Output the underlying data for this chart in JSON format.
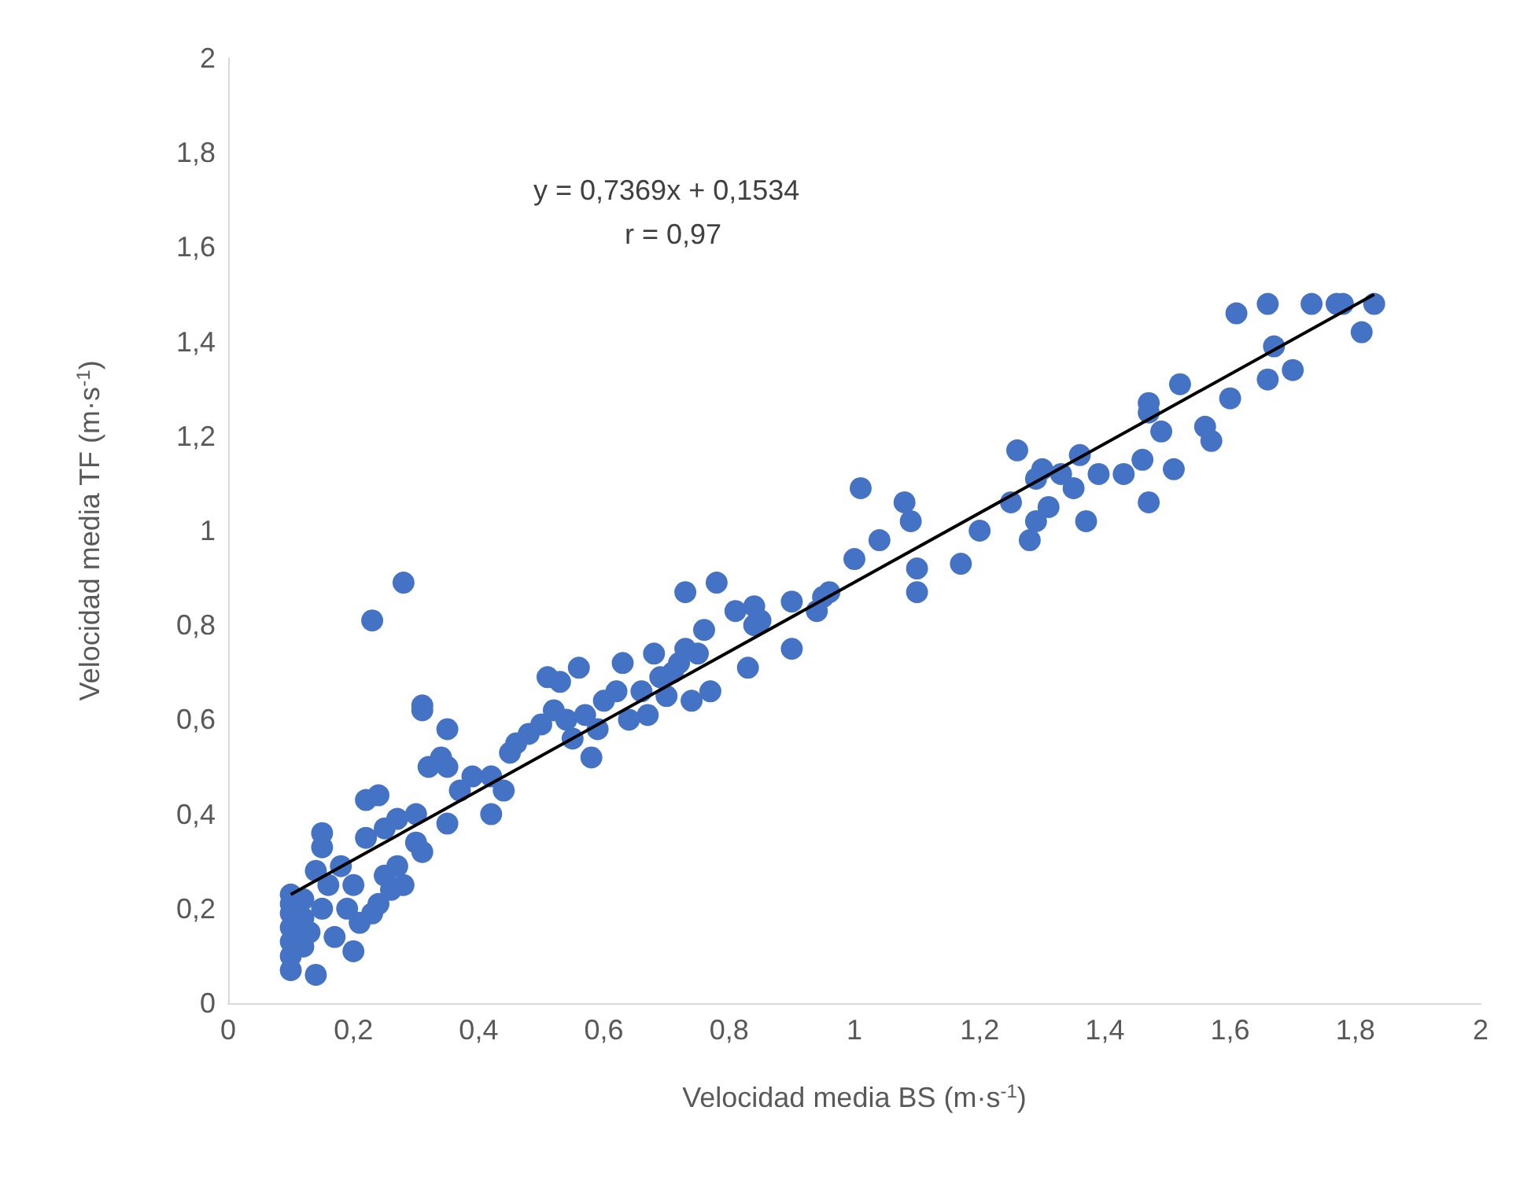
{
  "chart_data": {
    "type": "scatter",
    "xlabel": "Velocidad media BS (m·s$^{-1}$)",
    "ylabel": "Velocidad media TF (m·s$^{-1}$)",
    "annotations": [
      "y = 0,7369x + 0,1534",
      "r = 0,97"
    ],
    "xlim": [
      0,
      2
    ],
    "ylim": [
      0,
      2
    ],
    "xticks": [
      0,
      {
        "value": 0.2,
        "label": "0,2"
      },
      {
        "value": 0.4,
        "label": "0,4"
      },
      {
        "value": 0.6,
        "label": "0,6"
      },
      {
        "value": 0.8,
        "label": "0,8"
      },
      1,
      {
        "value": 1.2,
        "label": "1,2"
      },
      {
        "value": 1.4,
        "label": "1,4"
      },
      {
        "value": 1.6,
        "label": "1,6"
      },
      {
        "value": 1.8,
        "label": "1,8"
      },
      2
    ],
    "yticks": [
      0,
      {
        "value": 0.2,
        "label": "0,2"
      },
      {
        "value": 0.4,
        "label": "0,4"
      },
      {
        "value": 0.6,
        "label": "0,6"
      },
      {
        "value": 0.8,
        "label": "0,8"
      },
      1,
      {
        "value": 1.2,
        "label": "1,2"
      },
      {
        "value": 1.4,
        "label": "1,4"
      },
      {
        "value": 1.6,
        "label": "1,6"
      },
      {
        "value": 1.8,
        "label": "1,8"
      },
      2
    ],
    "grid": false,
    "series": [
      {
        "color": "#4472c4",
        "marker": "circle",
        "x": [
          0.1,
          0.1,
          0.1,
          0.1,
          0.1,
          0.1,
          0.1,
          0.12,
          0.12,
          0.12,
          0.13,
          0.14,
          0.14,
          0.15,
          0.15,
          0.15,
          0.16,
          0.17,
          0.18,
          0.19,
          0.2,
          0.2,
          0.21,
          0.22,
          0.22,
          0.23,
          0.23,
          0.24,
          0.24,
          0.25,
          0.25,
          0.26,
          0.27,
          0.27,
          0.28,
          0.28,
          0.3,
          0.3,
          0.31,
          0.31,
          0.31,
          0.32,
          0.34,
          0.35,
          0.35,
          0.35,
          0.37,
          0.39,
          0.42,
          0.42,
          0.44,
          0.45,
          0.46,
          0.48,
          0.5,
          0.51,
          0.52,
          0.53,
          0.54,
          0.55,
          0.56,
          0.57,
          0.58,
          0.59,
          0.6,
          0.62,
          0.63,
          0.64,
          0.66,
          0.67,
          0.68,
          0.69,
          0.7,
          0.71,
          0.72,
          0.73,
          0.73,
          0.74,
          0.75,
          0.76,
          0.77,
          0.78,
          0.81,
          0.83,
          0.84,
          0.84,
          0.85,
          0.9,
          0.9,
          0.94,
          0.95,
          0.96,
          1.0,
          1.01,
          1.04,
          1.08,
          1.09,
          1.1,
          1.1,
          1.17,
          1.2,
          1.25,
          1.26,
          1.28,
          1.29,
          1.29,
          1.3,
          1.31,
          1.33,
          1.35,
          1.36,
          1.37,
          1.39,
          1.43,
          1.46,
          1.47,
          1.47,
          1.47,
          1.49,
          1.51,
          1.52,
          1.56,
          1.57,
          1.6,
          1.61,
          1.66,
          1.66,
          1.67,
          1.7,
          1.73,
          1.77,
          1.78,
          1.81,
          1.83
        ],
        "values": [
          0.07,
          0.1,
          0.13,
          0.16,
          0.19,
          0.21,
          0.23,
          0.12,
          0.18,
          0.22,
          0.15,
          0.06,
          0.28,
          0.33,
          0.36,
          0.2,
          0.25,
          0.14,
          0.29,
          0.2,
          0.11,
          0.25,
          0.17,
          0.35,
          0.43,
          0.19,
          0.81,
          0.21,
          0.44,
          0.37,
          0.27,
          0.24,
          0.39,
          0.29,
          0.89,
          0.25,
          0.4,
          0.34,
          0.32,
          0.63,
          0.62,
          0.5,
          0.52,
          0.58,
          0.38,
          0.5,
          0.45,
          0.48,
          0.4,
          0.48,
          0.45,
          0.53,
          0.55,
          0.57,
          0.59,
          0.69,
          0.62,
          0.68,
          0.6,
          0.56,
          0.71,
          0.61,
          0.52,
          0.58,
          0.64,
          0.66,
          0.72,
          0.6,
          0.66,
          0.61,
          0.74,
          0.69,
          0.65,
          0.7,
          0.72,
          0.87,
          0.75,
          0.64,
          0.74,
          0.79,
          0.66,
          0.89,
          0.83,
          0.71,
          0.84,
          0.8,
          0.81,
          0.85,
          0.75,
          0.83,
          0.86,
          0.87,
          0.94,
          1.09,
          0.98,
          1.06,
          1.02,
          0.92,
          0.87,
          0.93,
          1.0,
          1.06,
          1.17,
          0.98,
          1.02,
          1.11,
          1.13,
          1.05,
          1.12,
          1.09,
          1.16,
          1.02,
          1.12,
          1.12,
          1.15,
          1.27,
          1.25,
          1.06,
          1.21,
          1.13,
          1.31,
          1.22,
          1.19,
          1.28,
          1.46,
          1.48,
          1.32,
          1.39,
          1.34,
          1.48,
          1.48,
          1.48,
          1.42,
          1.48
        ]
      },
      {
        "type": "line",
        "color": "#000000",
        "marker": "none",
        "x": [
          0.1,
          1.83
        ],
        "values": [
          0.23,
          1.5
        ]
      }
    ]
  }
}
